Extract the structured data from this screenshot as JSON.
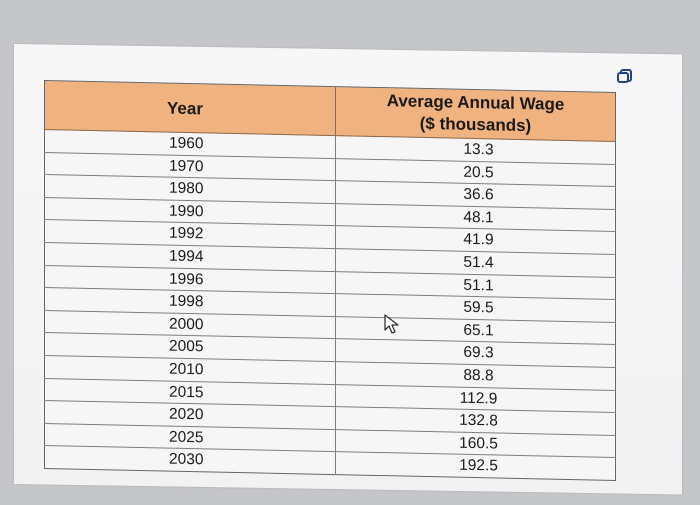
{
  "table": {
    "headers": {
      "year": "Year",
      "wage_line1": "Average Annual Wage",
      "wage_line2": "($ thousands)"
    },
    "rows": [
      {
        "year": "1960",
        "wage": "13.3"
      },
      {
        "year": "1970",
        "wage": "20.5"
      },
      {
        "year": "1980",
        "wage": "36.6"
      },
      {
        "year": "1990",
        "wage": "48.1"
      },
      {
        "year": "1992",
        "wage": "41.9"
      },
      {
        "year": "1994",
        "wage": "51.4"
      },
      {
        "year": "1996",
        "wage": "51.1"
      },
      {
        "year": "1998",
        "wage": "59.5"
      },
      {
        "year": "2000",
        "wage": "65.1"
      },
      {
        "year": "2005",
        "wage": "69.3"
      },
      {
        "year": "2010",
        "wage": "88.8"
      },
      {
        "year": "2015",
        "wage": "112.9"
      },
      {
        "year": "2020",
        "wage": "132.8"
      },
      {
        "year": "2025",
        "wage": "160.5"
      },
      {
        "year": "2030",
        "wage": "192.5"
      }
    ]
  },
  "icons": {
    "copy": "copy-icon",
    "cursor": "arrow-cursor-icon"
  },
  "colors": {
    "header_bg": "#f0b27e",
    "panel_bg": "#f4f4f5"
  }
}
